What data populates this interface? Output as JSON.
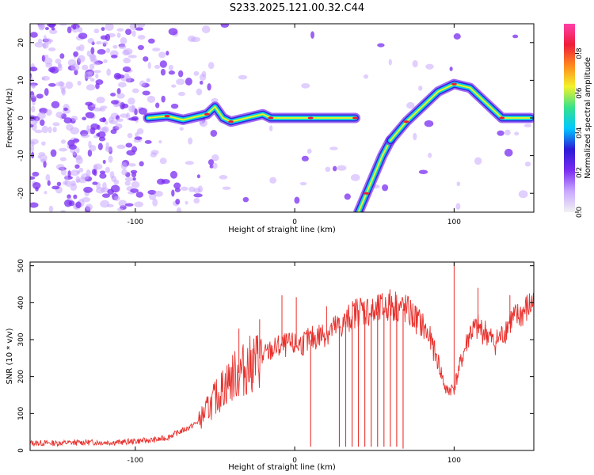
{
  "figure": {
    "title": "S233.2025.121.00.32.C44"
  },
  "colors": {
    "snr_line": "#e8302c",
    "colormap": [
      "#f2f2f2",
      "#c9a8ff",
      "#7a2cf0",
      "#2b1ad6",
      "#00c8ff",
      "#37e28b",
      "#f3f22b",
      "#ff8a1e",
      "#ee1d3a",
      "#ff3fa9"
    ]
  },
  "chart_data": [
    {
      "type": "heatmap",
      "xlabel": "Height of straight line (km)",
      "ylabel": "Frequency (Hz)",
      "xlim": [
        -166,
        150
      ],
      "ylim": [
        -25,
        25
      ],
      "xticks": [
        -100,
        0,
        100
      ],
      "yticks": [
        -20,
        -10,
        0,
        10,
        20
      ],
      "colorbar": {
        "label": "Normalized spectral amplitude",
        "range": [
          0,
          0.95
        ],
        "ticks": [
          0.0,
          0.2,
          0.4,
          0.6,
          0.8
        ]
      },
      "ridges": [
        {
          "segment": "flat-left",
          "x": [
            -92,
            -80,
            -70,
            -60,
            -55,
            -50,
            -45,
            -40,
            -30,
            -20,
            -15,
            -10,
            0,
            10,
            20,
            30,
            38
          ],
          "y": [
            0,
            0.5,
            -0.5,
            0.5,
            1,
            3,
            0,
            -1,
            0,
            1,
            0,
            0,
            0,
            0,
            0,
            0,
            0
          ]
        },
        {
          "segment": "rising",
          "x": [
            40,
            45,
            50,
            55,
            60
          ],
          "y": [
            -25,
            -20,
            -15,
            -10,
            -6
          ]
        },
        {
          "segment": "arch",
          "x": [
            60,
            70,
            80,
            90,
            100,
            110,
            120,
            130,
            140,
            148
          ],
          "y": [
            -6,
            -1,
            3,
            7,
            9,
            8,
            4,
            0,
            0,
            0
          ]
        }
      ]
    },
    {
      "type": "line",
      "xlabel": "Height of straight line (km)",
      "ylabel": "SNR (10 * v/v)",
      "xlim": [
        -166,
        150
      ],
      "ylim": [
        0,
        510
      ],
      "xticks": [
        -100,
        0,
        100
      ],
      "yticks": [
        0,
        100,
        200,
        300,
        400,
        500
      ],
      "series": [
        {
          "x": [
            -166,
            -150,
            -130,
            -110,
            -100,
            -90,
            -85,
            -80,
            -75,
            -70,
            -65,
            -60,
            -55,
            -50,
            -45,
            -40,
            -35,
            -30,
            -25,
            -20,
            -15,
            -10,
            -5,
            0,
            5,
            10,
            15,
            20,
            25,
            30,
            35,
            40,
            45,
            50,
            55,
            60,
            65,
            70,
            75,
            80,
            85,
            90,
            95,
            100,
            105,
            110,
            115,
            120,
            125,
            130,
            135,
            140,
            145,
            150
          ],
          "values": [
            20,
            20,
            22,
            22,
            25,
            28,
            30,
            35,
            45,
            55,
            65,
            80,
            110,
            140,
            170,
            195,
            210,
            225,
            240,
            255,
            270,
            280,
            285,
            285,
            290,
            300,
            310,
            320,
            330,
            340,
            360,
            380,
            380,
            370,
            385,
            395,
            390,
            380,
            360,
            340,
            300,
            240,
            160,
            170,
            250,
            320,
            330,
            320,
            290,
            310,
            350,
            360,
            380,
            400
          ]
        }
      ],
      "spikes": [
        {
          "x": -35,
          "y": 330
        },
        {
          "x": -22,
          "y": 355
        },
        {
          "x": -8,
          "y": 420
        },
        {
          "x": 1,
          "y": 415
        },
        {
          "x": 20,
          "y": 390
        },
        {
          "x": 100,
          "y": 510
        },
        {
          "x": 115,
          "y": 440
        },
        {
          "x": 135,
          "y": 420
        }
      ],
      "dips": [
        {
          "x": 10,
          "y": 10
        },
        {
          "x": 28,
          "y": 10
        },
        {
          "x": 32,
          "y": 10
        },
        {
          "x": 36,
          "y": 10
        },
        {
          "x": 40,
          "y": 10
        },
        {
          "x": 44,
          "y": 10
        },
        {
          "x": 48,
          "y": 10
        },
        {
          "x": 52,
          "y": 10
        },
        {
          "x": 56,
          "y": 10
        },
        {
          "x": 60,
          "y": 10
        },
        {
          "x": 64,
          "y": 10
        },
        {
          "x": 68,
          "y": 5
        }
      ]
    }
  ]
}
